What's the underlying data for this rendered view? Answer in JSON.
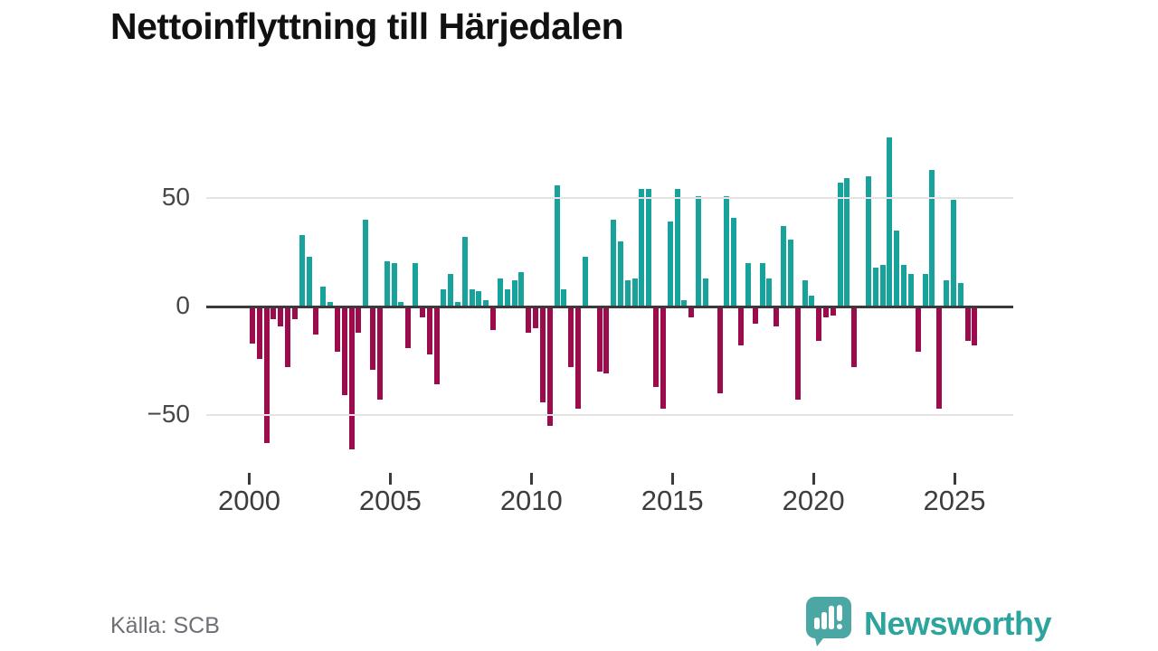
{
  "title": "Nettoinflyttning till Härjedalen",
  "source": "Källa: SCB",
  "logo": {
    "text": "Newsworthy",
    "icon": "bar-chart-speech-bubble",
    "color": "#2ea49e",
    "icon_color": "#4ba7a4"
  },
  "colors": {
    "positive": "#17a29b",
    "negative": "#9c0b4c",
    "zero_line": "#3a3a3a",
    "gridline": "#e3e3e3"
  },
  "y_axis": {
    "ticks": [
      {
        "label": "50",
        "value": 50
      },
      {
        "label": "0",
        "value": 0
      },
      {
        "label": "−50",
        "value": -50
      }
    ]
  },
  "x_axis": {
    "year_ticks": [
      {
        "label": "2000",
        "year": 2000
      },
      {
        "label": "2005",
        "year": 2005
      },
      {
        "label": "2010",
        "year": 2010
      },
      {
        "label": "2015",
        "year": 2015
      },
      {
        "label": "2020",
        "year": 2020
      },
      {
        "label": "2025",
        "year": 2025
      }
    ]
  },
  "chart_data": {
    "type": "bar",
    "title": "Nettoinflyttning till Härjedalen",
    "xlabel": "",
    "ylabel": "",
    "frequency": "quarterly",
    "start_period": "2000 Q1",
    "end_period": "2025 Q3",
    "ylim": [
      -70,
      85
    ],
    "grid": "horizontal",
    "legend": "none",
    "values": [
      -17,
      -24,
      -63,
      -6,
      -9,
      -28,
      -6,
      33,
      23,
      -13,
      9,
      2,
      -21,
      -41,
      -66,
      -12,
      40,
      -29,
      -43,
      21,
      20,
      2,
      -19,
      20,
      -5,
      -22,
      -36,
      8,
      15,
      2,
      32,
      8,
      7,
      3,
      -11,
      13,
      8,
      12,
      16,
      -12,
      -10,
      -44,
      -55,
      56,
      8,
      -28,
      -47,
      23,
      0,
      -30,
      -31,
      40,
      30,
      12,
      13,
      54,
      54,
      -37,
      -47,
      39,
      54,
      3,
      -5,
      51,
      13,
      0,
      -40,
      51,
      41,
      -18,
      20,
      -8,
      20,
      13,
      -9,
      37,
      31,
      -43,
      12,
      5,
      -16,
      -5,
      -4,
      57,
      59,
      -28,
      0,
      60,
      18,
      19,
      78,
      35,
      19,
      15,
      -21,
      15,
      63,
      -47,
      12,
      49,
      11,
      -16,
      -18
    ]
  }
}
